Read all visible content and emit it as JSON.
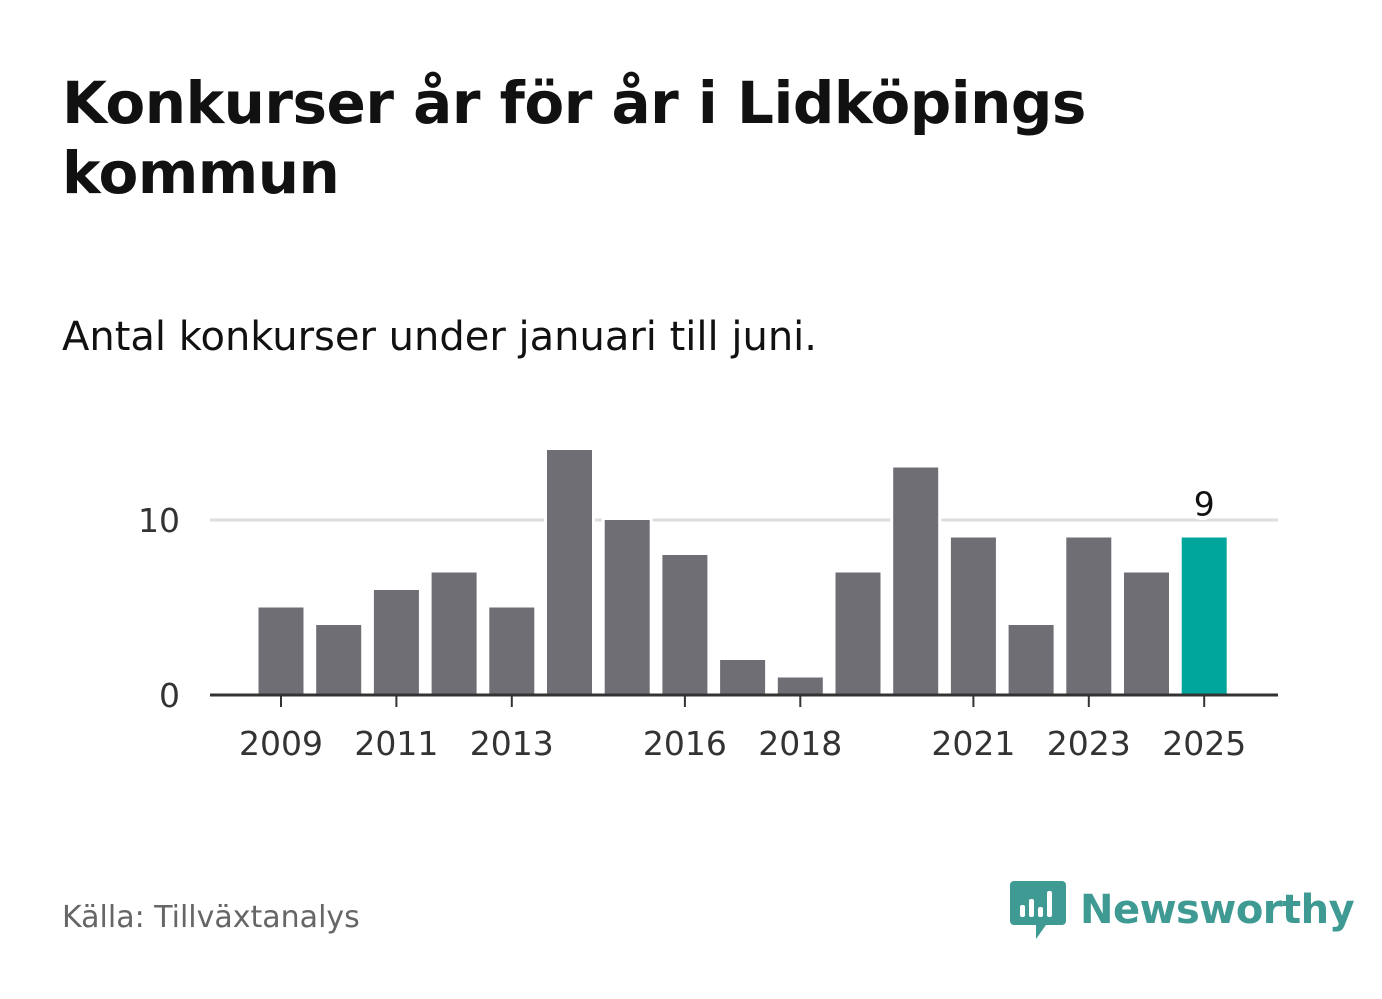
{
  "header": {
    "title": "Konkurser år för år i Lidköpings kommun",
    "subtitle": "Antal konkurser under januari till juni."
  },
  "footer": {
    "source": "Källa: Tillväxtanalys",
    "brand": "Newsworthy"
  },
  "colors": {
    "bar": "#6f6e74",
    "highlight": "#00a69c",
    "grid": "#dddddd",
    "axis": "#333333",
    "brand": "#3e9a93"
  },
  "icons": {
    "brand_logo": "bar-chart-speech-bubble-icon"
  },
  "chart_data": {
    "type": "bar",
    "title": "Konkurser år för år i Lidköpings kommun",
    "subtitle": "Antal konkurser under januari till juni.",
    "xlabel": "",
    "ylabel": "",
    "categories": [
      "2009",
      "2010",
      "2011",
      "2012",
      "2013",
      "2014",
      "2015",
      "2016",
      "2017",
      "2018",
      "2019",
      "2020",
      "2021",
      "2022",
      "2023",
      "2024",
      "2025"
    ],
    "values": [
      5,
      4,
      6,
      7,
      5,
      14,
      10,
      8,
      2,
      1,
      7,
      13,
      9,
      4,
      9,
      7,
      9
    ],
    "x_tick_labels": [
      "2009",
      "2011",
      "2013",
      "2016",
      "2018",
      "2021",
      "2023",
      "2025"
    ],
    "y_ticks": [
      0,
      10
    ],
    "y_tick_labels": [
      "0",
      "10"
    ],
    "ylim": [
      0,
      14
    ],
    "grid": true,
    "legend": "none",
    "highlight_category": "2025",
    "data_labels": [
      {
        "category": "2025",
        "text": "9"
      }
    ]
  }
}
